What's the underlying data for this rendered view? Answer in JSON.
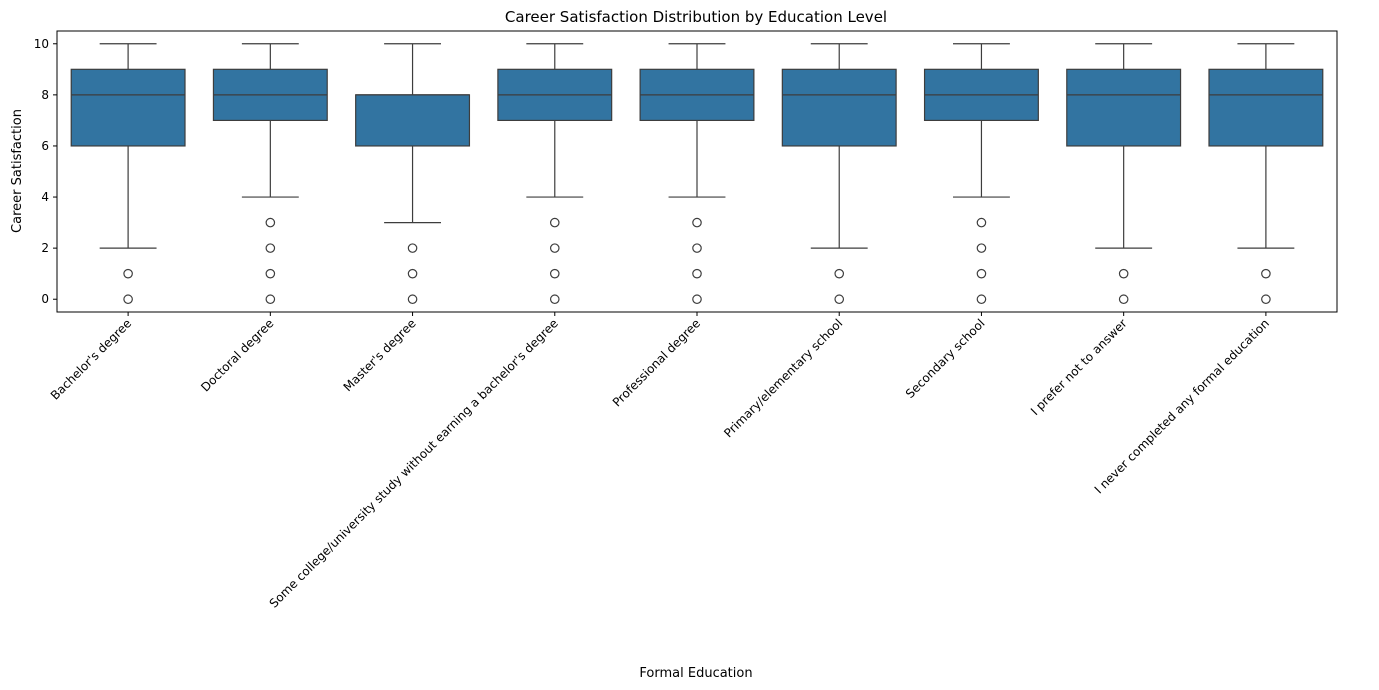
{
  "chart_data": {
    "type": "box",
    "title": "Career Satisfaction Distribution by Education Level",
    "xlabel": "Formal Education",
    "ylabel": "Career Satisfaction",
    "ylim": [
      -0.5,
      10.5
    ],
    "yticks": [
      0,
      2,
      4,
      6,
      8,
      10
    ],
    "grid": false,
    "box_color": "#3274a1",
    "line_color": "#3d3d3d",
    "categories": [
      "Bachelor's degree",
      "Doctoral degree",
      "Master's degree",
      "Some college/university study without earning a bachelor's degree",
      "Professional degree",
      "Primary/elementary school",
      "Secondary school",
      "I prefer not to answer",
      "I never completed any formal education"
    ],
    "boxes": [
      {
        "whisker_low": 2,
        "q1": 6,
        "median": 8,
        "q3": 9,
        "whisker_high": 10,
        "outliers": [
          0,
          1
        ]
      },
      {
        "whisker_low": 4,
        "q1": 7,
        "median": 8,
        "q3": 9,
        "whisker_high": 10,
        "outliers": [
          0,
          1,
          2,
          3
        ]
      },
      {
        "whisker_low": 3,
        "q1": 6,
        "median": 8,
        "q3": 8,
        "whisker_high": 10,
        "outliers": [
          0,
          1,
          2
        ]
      },
      {
        "whisker_low": 4,
        "q1": 7,
        "median": 8,
        "q3": 9,
        "whisker_high": 10,
        "outliers": [
          0,
          1,
          2,
          3
        ]
      },
      {
        "whisker_low": 4,
        "q1": 7,
        "median": 8,
        "q3": 9,
        "whisker_high": 10,
        "outliers": [
          0,
          1,
          2,
          3
        ]
      },
      {
        "whisker_low": 2,
        "q1": 6,
        "median": 8,
        "q3": 9,
        "whisker_high": 10,
        "outliers": [
          0,
          1
        ]
      },
      {
        "whisker_low": 4,
        "q1": 7,
        "median": 8,
        "q3": 9,
        "whisker_high": 10,
        "outliers": [
          0,
          1,
          2,
          3
        ]
      },
      {
        "whisker_low": 2,
        "q1": 6,
        "median": 8,
        "q3": 9,
        "whisker_high": 10,
        "outliers": [
          0,
          1
        ]
      },
      {
        "whisker_low": 2,
        "q1": 6,
        "median": 8,
        "q3": 9,
        "whisker_high": 10,
        "outliers": [
          0,
          1
        ]
      }
    ]
  }
}
